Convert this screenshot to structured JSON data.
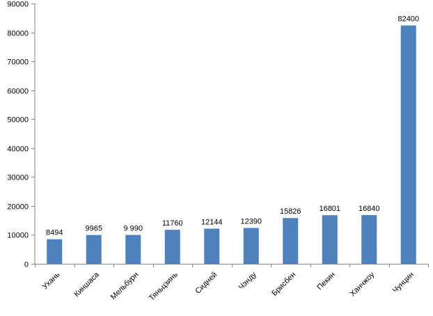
{
  "chart_data": {
    "type": "bar",
    "categories": [
      "Ухань",
      "Киншаса",
      "Мельбурн",
      "Тяньцзинь",
      "Сидней",
      "Чэнду",
      "Брисбен",
      "Пекин",
      "Ханчжоу",
      "Чунцин"
    ],
    "values": [
      8494,
      9965,
      9990,
      11760,
      12144,
      12390,
      15826,
      16801,
      16840,
      82400
    ],
    "data_labels": [
      "8494",
      "9965",
      "9 990",
      "11760",
      "12144",
      "12390",
      "15826",
      "16801",
      "16840",
      "82400"
    ],
    "y_ticks": [
      0,
      10000,
      20000,
      30000,
      40000,
      50000,
      60000,
      70000,
      80000,
      90000
    ],
    "ylim": [
      0,
      90000
    ],
    "grid": false,
    "legend": "none",
    "colors": {
      "bar": "#4F81BD",
      "axis": "#868686"
    }
  }
}
